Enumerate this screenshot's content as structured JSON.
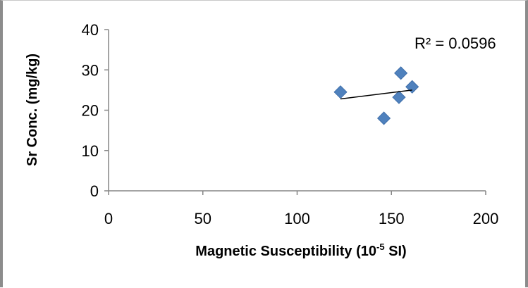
{
  "chart_data": {
    "type": "scatter",
    "title": "",
    "xlabel_main": "Magnetic Susceptibility (10",
    "xlabel_sup": "-5",
    "xlabel_tail": " SI)",
    "ylabel": "Sr Conc. (mg/kg)",
    "xlim": [
      0,
      200
    ],
    "ylim": [
      0,
      40
    ],
    "x_ticks": [
      0,
      50,
      100,
      150,
      200
    ],
    "y_ticks": [
      0,
      10,
      20,
      30,
      40
    ],
    "series": [
      {
        "points": [
          {
            "x": 123,
            "y": 24.5
          },
          {
            "x": 146,
            "y": 18.0
          },
          {
            "x": 154,
            "y": 23.2
          },
          {
            "x": 155,
            "y": 29.2
          },
          {
            "x": 161,
            "y": 25.8
          }
        ],
        "color": "#4f81bd",
        "marker": "diamond"
      }
    ],
    "trendline": {
      "type": "linear",
      "x_range": [
        123,
        161
      ],
      "y_start": 22.8,
      "y_end": 25.0,
      "color": "#000000",
      "annotation": "R² = 0.0596"
    },
    "grid": false,
    "legend": "none"
  }
}
